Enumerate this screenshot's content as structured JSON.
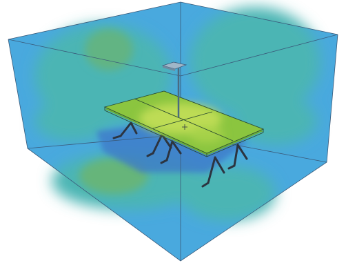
{
  "scene": {
    "description_colors": {
      "background": "#ffffff",
      "illuminance_low": "#49a9de",
      "illuminance_mid": "#4bb5b4",
      "illuminance_high": "#66b57a",
      "table_top": "#8bc53f",
      "table_top_bright": "#bddc54",
      "edges": "#3a5a7a",
      "table_legs": "#2c3440",
      "shadow": "#3c78c8"
    },
    "objects": {
      "room": "room-box",
      "table": "conference-table",
      "luminaire": "pendant-luminaire"
    }
  }
}
